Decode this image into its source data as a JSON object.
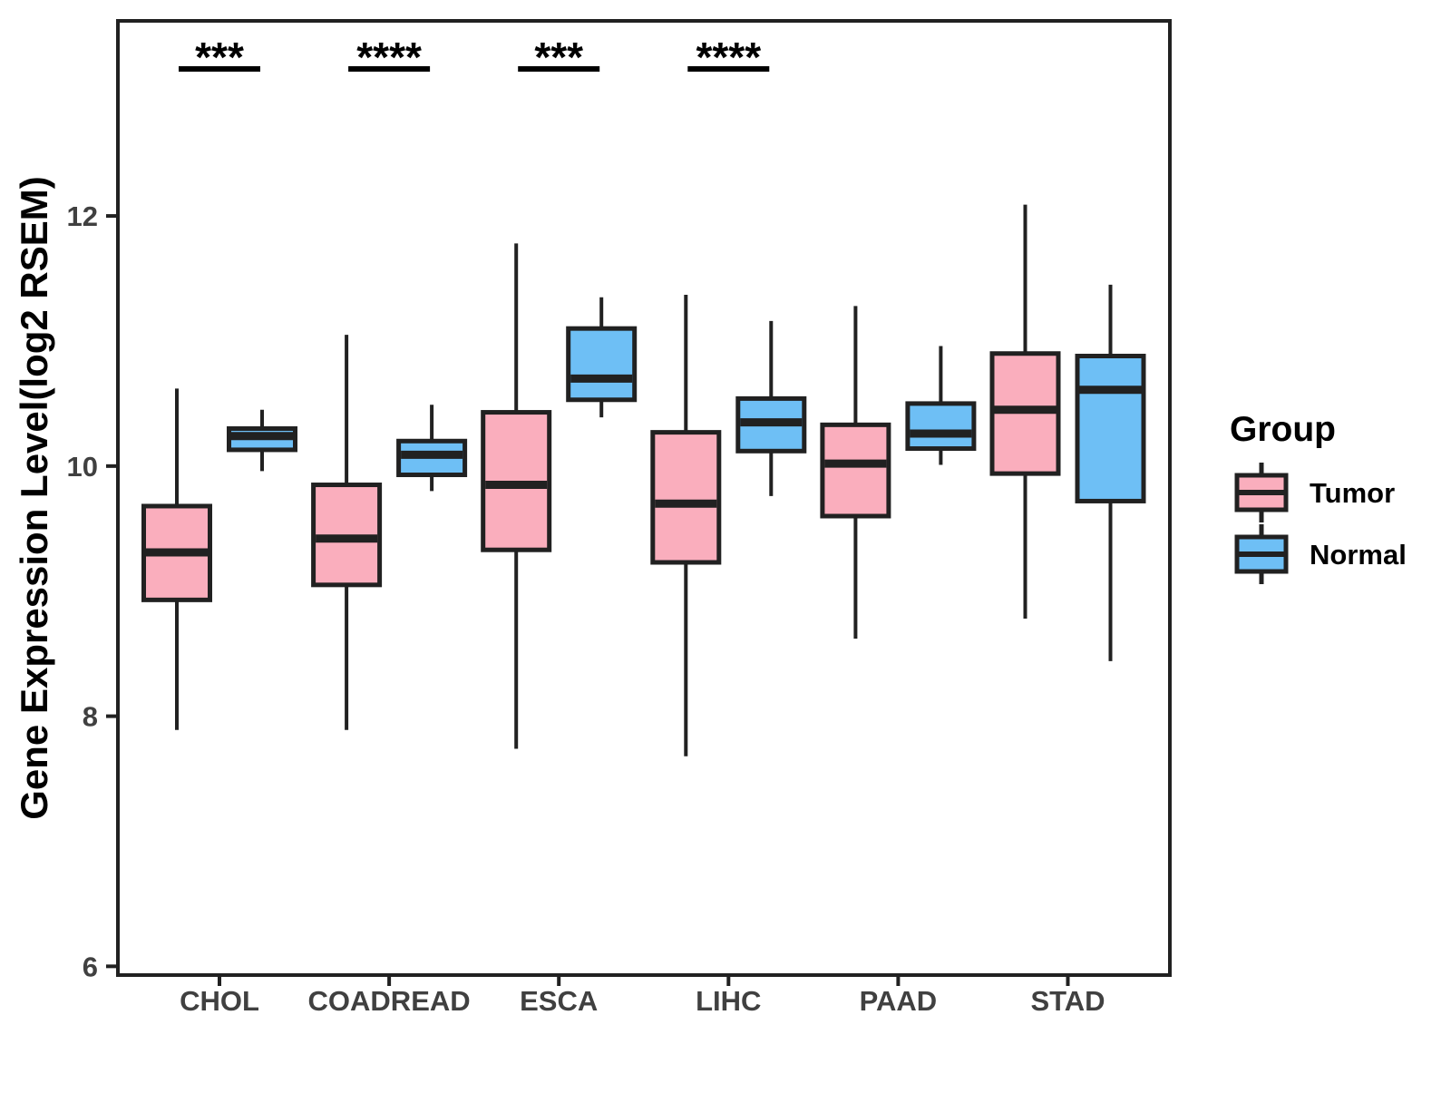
{
  "chart_data": {
    "type": "grouped_boxplot",
    "title": "",
    "xlabel": "",
    "ylabel": "Gene Expression Level(log2 RSEM)",
    "categories": [
      "CHOL",
      "COADREAD",
      "ESCA",
      "LIHC",
      "PAAD",
      "STAD"
    ],
    "y_ticks": [
      6,
      8,
      10,
      12
    ],
    "ylim": [
      5.93,
      13.56
    ],
    "grid": false,
    "legend": {
      "title": "Group",
      "position": "right",
      "entries": [
        {
          "label": "Tumor",
          "color": "#FAAEBD"
        },
        {
          "label": "Normal",
          "color": "#6EBFF5"
        }
      ]
    },
    "significance": [
      {
        "category": "CHOL",
        "label": "***"
      },
      {
        "category": "COADREAD",
        "label": "****"
      },
      {
        "category": "ESCA",
        "label": "***"
      },
      {
        "category": "LIHC",
        "label": "****"
      }
    ],
    "series": [
      {
        "name": "Tumor",
        "color": "#FAAEBD",
        "boxes": [
          {
            "category": "CHOL",
            "min": 7.89,
            "q1": 8.93,
            "median": 9.31,
            "q3": 9.68,
            "max": 10.62
          },
          {
            "category": "COADREAD",
            "min": 7.89,
            "q1": 9.05,
            "median": 9.42,
            "q3": 9.85,
            "max": 11.05
          },
          {
            "category": "ESCA",
            "min": 7.74,
            "q1": 9.33,
            "median": 9.85,
            "q3": 10.43,
            "max": 11.78
          },
          {
            "category": "LIHC",
            "min": 7.68,
            "q1": 9.23,
            "median": 9.7,
            "q3": 10.27,
            "max": 11.37
          },
          {
            "category": "PAAD",
            "min": 8.62,
            "q1": 9.6,
            "median": 10.02,
            "q3": 10.33,
            "max": 11.28
          },
          {
            "category": "STAD",
            "min": 8.78,
            "q1": 9.94,
            "median": 10.45,
            "q3": 10.9,
            "max": 12.09
          }
        ]
      },
      {
        "name": "Normal",
        "color": "#6EBFF5",
        "boxes": [
          {
            "category": "CHOL",
            "min": 9.96,
            "q1": 10.13,
            "median": 10.24,
            "q3": 10.3,
            "max": 10.45
          },
          {
            "category": "COADREAD",
            "min": 9.8,
            "q1": 9.93,
            "median": 10.09,
            "q3": 10.2,
            "max": 10.49
          },
          {
            "category": "ESCA",
            "min": 10.39,
            "q1": 10.53,
            "median": 10.7,
            "q3": 11.1,
            "max": 11.35
          },
          {
            "category": "LIHC",
            "min": 9.76,
            "q1": 10.12,
            "median": 10.35,
            "q3": 10.54,
            "max": 11.16
          },
          {
            "category": "PAAD",
            "min": 10.01,
            "q1": 10.14,
            "median": 10.26,
            "q3": 10.5,
            "max": 10.96
          },
          {
            "category": "STAD",
            "min": 8.44,
            "q1": 9.72,
            "median": 10.61,
            "q3": 10.88,
            "max": 11.45
          }
        ]
      }
    ],
    "colors": {
      "tumor_fill": "#FAAEBD",
      "normal_fill": "#6EBFF5",
      "line": "#212121",
      "axis_text": "#404040",
      "title_text": "#000000",
      "background": "#ffffff"
    }
  }
}
